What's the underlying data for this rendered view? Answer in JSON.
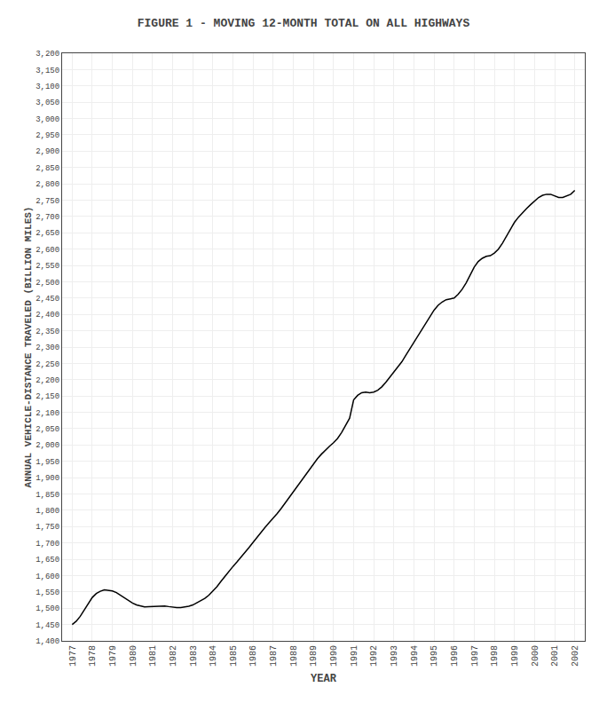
{
  "chart_data": {
    "type": "line",
    "title": "FIGURE 1 - MOVING 12-MONTH TOTAL ON ALL HIGHWAYS",
    "xlabel": "YEAR",
    "ylabel": "ANNUAL VEHICLE-DISTANCE TRAVELED (BILLION MILES)",
    "color": "#000000",
    "grid": true,
    "xlim": [
      1976.5,
      2002.5
    ],
    "xticks": [
      1977,
      1978,
      1979,
      1980,
      1981,
      1982,
      1983,
      1984,
      1985,
      1986,
      1987,
      1988,
      1989,
      1990,
      1991,
      1992,
      1993,
      1994,
      1995,
      1996,
      1997,
      1998,
      1999,
      2000,
      2001,
      2002
    ],
    "ylim": [
      1400,
      3200
    ],
    "yticks": [
      {
        "value": 1400,
        "label": "1,400"
      },
      {
        "value": 1450,
        "label": "1,450"
      },
      {
        "value": 1500,
        "label": "1,500"
      },
      {
        "value": 1550,
        "label": "1,550"
      },
      {
        "value": 1600,
        "label": "1,600"
      },
      {
        "value": 1650,
        "label": "1,650"
      },
      {
        "value": 1700,
        "label": "1,700"
      },
      {
        "value": 1750,
        "label": "1,750"
      },
      {
        "value": 1800,
        "label": "1,800"
      },
      {
        "value": 1850,
        "label": "1,850"
      },
      {
        "value": 1900,
        "label": "1,900"
      },
      {
        "value": 1950,
        "label": "1,950"
      },
      {
        "value": 2000,
        "label": "2,000"
      },
      {
        "value": 2050,
        "label": "2,050"
      },
      {
        "value": 2100,
        "label": "2,100"
      },
      {
        "value": 2150,
        "label": "2,150"
      },
      {
        "value": 2200,
        "label": "2,200"
      },
      {
        "value": 2250,
        "label": "2,250"
      },
      {
        "value": 2300,
        "label": "2,300"
      },
      {
        "value": 2350,
        "label": "2,350"
      },
      {
        "value": 2400,
        "label": "2,400"
      },
      {
        "value": 2450,
        "label": "2,450"
      },
      {
        "value": 2500,
        "label": "2,500"
      },
      {
        "value": 2550,
        "label": "2,550"
      },
      {
        "value": 2600,
        "label": "2,600"
      },
      {
        "value": 2650,
        "label": "2,650"
      },
      {
        "value": 2700,
        "label": "2,700"
      },
      {
        "value": 2750,
        "label": "2,750"
      },
      {
        "value": 2800,
        "label": "2,800"
      },
      {
        "value": 2850,
        "label": "2,850"
      },
      {
        "value": 2900,
        "label": "2,900"
      },
      {
        "value": 2950,
        "label": "2,950"
      },
      {
        "value": 3000,
        "label": "3,000"
      },
      {
        "value": 3050,
        "label": "3,050"
      },
      {
        "value": 3100,
        "label": "3,100"
      },
      {
        "value": 3150,
        "label": "3,150"
      },
      {
        "value": 3200,
        "label": "3,200"
      }
    ],
    "x": [
      1977.0,
      1977.2,
      1977.4,
      1977.6,
      1977.8,
      1978.0,
      1978.2,
      1978.4,
      1978.6,
      1978.8,
      1979.0,
      1979.2,
      1979.4,
      1979.6,
      1979.8,
      1980.0,
      1980.2,
      1980.4,
      1980.6,
      1980.8,
      1981.0,
      1981.2,
      1981.4,
      1981.6,
      1981.8,
      1982.0,
      1982.2,
      1982.4,
      1982.6,
      1982.8,
      1983.0,
      1983.2,
      1983.4,
      1983.6,
      1983.8,
      1984.0,
      1984.2,
      1984.4,
      1984.6,
      1984.8,
      1985.0,
      1985.2,
      1985.4,
      1985.6,
      1985.8,
      1986.0,
      1986.2,
      1986.4,
      1986.6,
      1986.8,
      1987.0,
      1987.2,
      1987.4,
      1987.6,
      1987.8,
      1988.0,
      1988.2,
      1988.4,
      1988.6,
      1988.8,
      1989.0,
      1989.2,
      1989.4,
      1989.6,
      1989.8,
      1990.0,
      1990.2,
      1990.4,
      1990.6,
      1990.8,
      1991.0,
      1991.2,
      1991.4,
      1991.6,
      1991.8,
      1992.0,
      1992.2,
      1992.4,
      1992.6,
      1992.8,
      1993.0,
      1993.2,
      1993.4,
      1993.6,
      1993.8,
      1994.0,
      1994.2,
      1994.4,
      1994.6,
      1994.8,
      1995.0,
      1995.2,
      1995.4,
      1995.6,
      1995.8,
      1996.0,
      1996.2,
      1996.4,
      1996.6,
      1996.8,
      1997.0,
      1997.2,
      1997.4,
      1997.6,
      1997.8,
      1998.0,
      1998.2,
      1998.4,
      1998.6,
      1998.8,
      1999.0,
      1999.2,
      1999.4,
      1999.6,
      1999.8,
      2000.0,
      2000.2,
      2000.4,
      2000.6,
      2000.8,
      2001.0,
      2001.2,
      2001.4,
      2001.6,
      2001.8,
      2002.0
    ],
    "values": [
      1450,
      1460,
      1475,
      1495,
      1515,
      1533,
      1545,
      1552,
      1556,
      1555,
      1553,
      1548,
      1540,
      1530,
      1522,
      1516,
      1510,
      1506,
      1504,
      1505,
      1506,
      1507,
      1508,
      1507,
      1505,
      1503,
      1502,
      1502,
      1503,
      1506,
      1510,
      1516,
      1522,
      1530,
      1540,
      1552,
      1566,
      1582,
      1598,
      1614,
      1628,
      1642,
      1656,
      1671,
      1686,
      1702,
      1718,
      1733,
      1748,
      1762,
      1775,
      1790,
      1806,
      1823,
      1840,
      1858,
      1876,
      1893,
      1910,
      1927,
      1944,
      1958,
      1972,
      1985,
      1996,
      2007,
      2020,
      2038,
      2060,
      2082,
      2138,
      2152,
      2160,
      2162,
      2160,
      2162,
      2168,
      2178,
      2192,
      2207,
      2222,
      2237,
      2255,
      2275,
      2295,
      2315,
      2335,
      2355,
      2375,
      2395,
      2413,
      2428,
      2438,
      2445,
      2448,
      2450,
      2462,
      2477,
      2497,
      2520,
      2545,
      2562,
      2572,
      2578,
      2580,
      2588,
      2600,
      2618,
      2640,
      2662,
      2682,
      2698,
      2712,
      2724,
      2736,
      2748,
      2758,
      2765,
      2768,
      2768,
      2763,
      2758,
      2758,
      2762,
      2768,
      2780
    ]
  }
}
